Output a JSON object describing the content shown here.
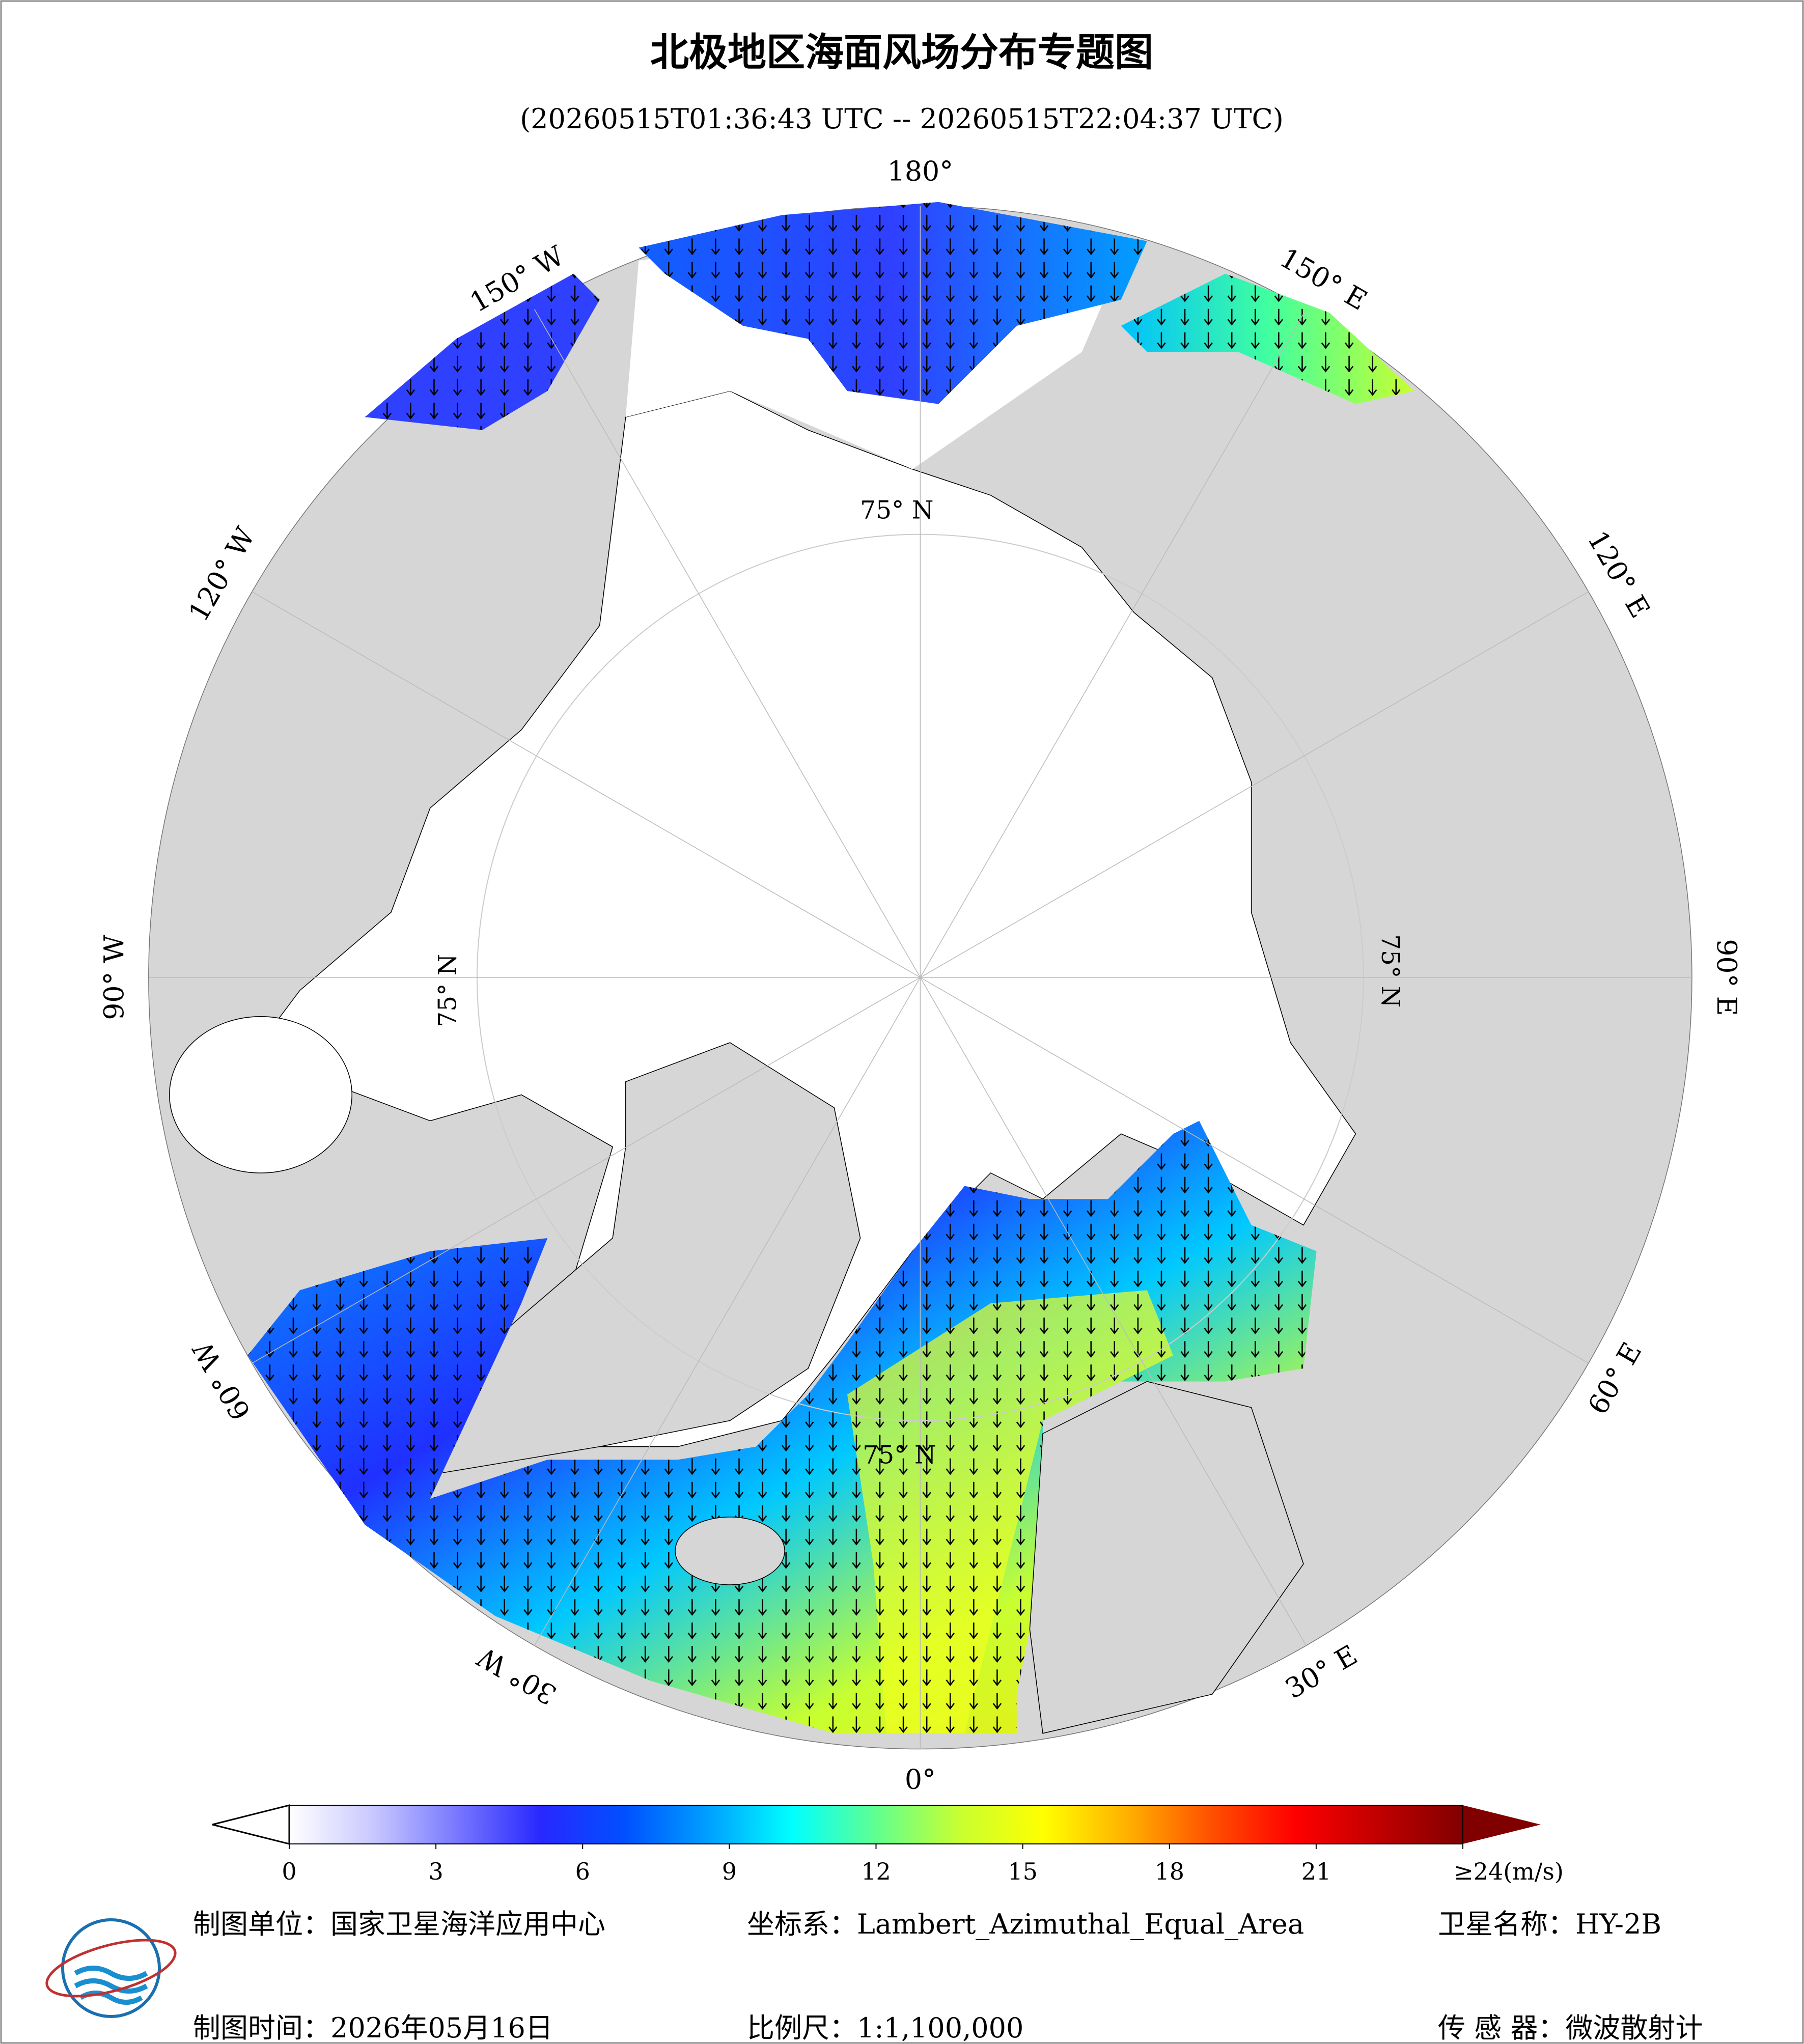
{
  "header": {
    "title": "北极地区海面风场分布专题图",
    "subtitle": "(20260515T01:36:43 UTC -- 20260515T22:04:37 UTC)"
  },
  "map": {
    "meridians": [
      {
        "value": 180,
        "label": "180°"
      },
      {
        "value": 150,
        "label": "150° E"
      },
      {
        "value": 120,
        "label": "120° E"
      },
      {
        "value": 90,
        "label": "90° E"
      },
      {
        "value": 60,
        "label": "60° E"
      },
      {
        "value": 30,
        "label": "30° E"
      },
      {
        "value": 0,
        "label": "0°"
      },
      {
        "value": -30,
        "label": "30° W"
      },
      {
        "value": -60,
        "label": "60° W"
      },
      {
        "value": -90,
        "label": "90° W"
      },
      {
        "value": -120,
        "label": "120° W"
      },
      {
        "value": -150,
        "label": "150° W"
      }
    ],
    "parallel_label": "75° N"
  },
  "colorbar": {
    "range": [
      0,
      24
    ],
    "ticks": [
      0,
      3,
      6,
      9,
      12,
      15,
      18,
      21,
      {
        "value": 24,
        "label": "≥24(m/s)"
      }
    ],
    "colors": [
      "#ffffff",
      "#c8c8ff",
      "#7878ff",
      "#2828ff",
      "#0050ff",
      "#00a0ff",
      "#00ffff",
      "#60ff90",
      "#c8ff30",
      "#ffff00",
      "#ffb000",
      "#ff5000",
      "#ff0000",
      "#c00000",
      "#800000"
    ]
  },
  "footer": {
    "items": [
      {
        "label": "制图单位：",
        "value": "国家卫星海洋应用中心"
      },
      {
        "label": "坐标系：",
        "value": "Lambert_Azimuthal_Equal_Area"
      },
      {
        "label": "卫星名称：",
        "value": "HY-2B"
      },
      {
        "label": "制图时间：",
        "value": "2026年05月16日"
      },
      {
        "label": "比例尺：",
        "value": "1:1,100,000"
      },
      {
        "label": "传 感 器：",
        "value": "微波散射计"
      }
    ]
  }
}
